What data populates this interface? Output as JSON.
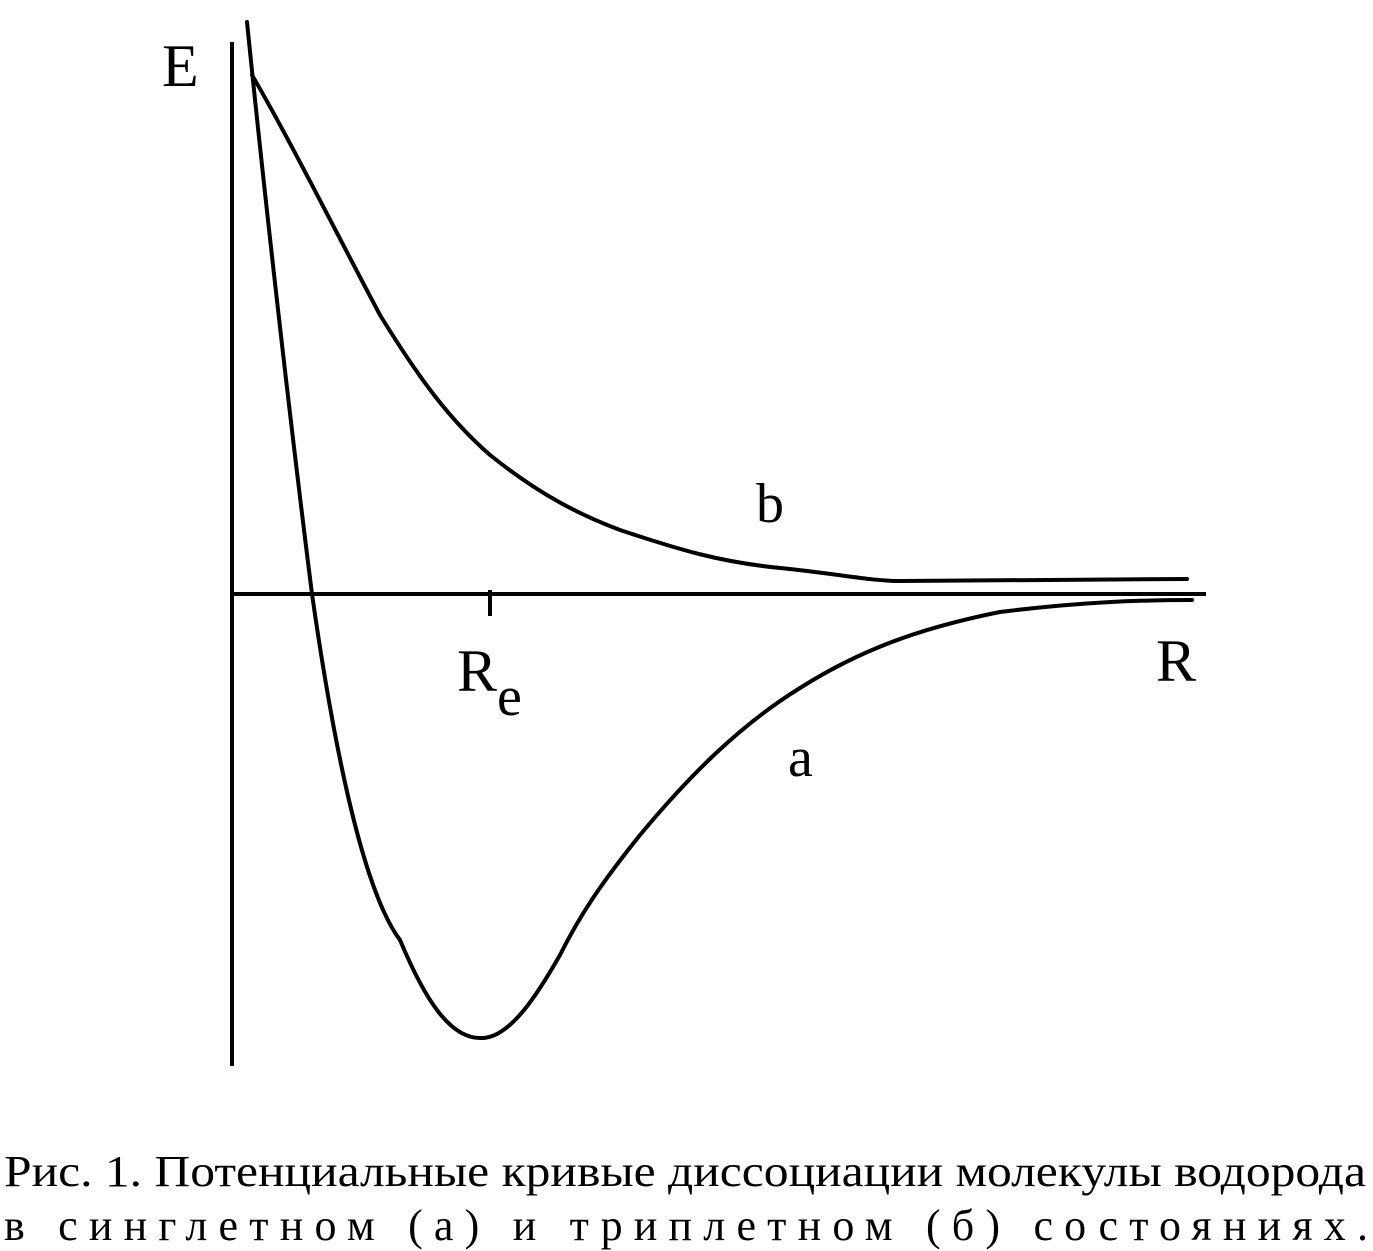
{
  "axes": {
    "y_label": "E",
    "x_label": "R"
  },
  "tick": {
    "label": "R",
    "subscript": "e"
  },
  "curves": [
    {
      "label": "a"
    },
    {
      "label": "b"
    }
  ],
  "caption": {
    "line1": "Рис. 1. Потенциальные кривые диссоциации молекулы водорода",
    "line2": "в синглетном (а) и триплетном (б) состояниях."
  }
}
